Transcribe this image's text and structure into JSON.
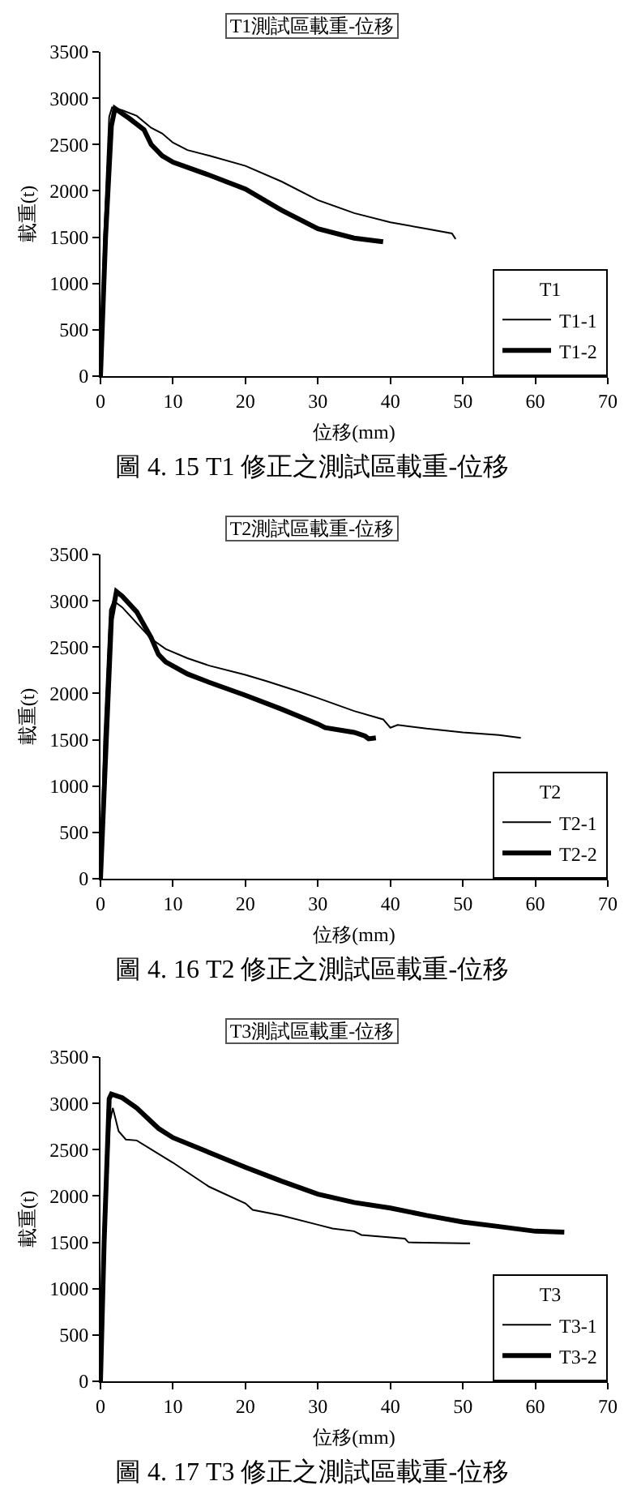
{
  "chart_data": [
    {
      "type": "line",
      "title": "T1測試區載重-位移",
      "xlabel": "位移(mm)",
      "ylabel": "載重(t)",
      "legend_title": "T1",
      "legend": "bottom right",
      "grid": false,
      "xlim": [
        0,
        70
      ],
      "xticks": [
        0,
        10,
        20,
        30,
        40,
        50,
        60,
        70
      ],
      "ylim": [
        0,
        3500
      ],
      "yticks": [
        0,
        500,
        1000,
        1500,
        2000,
        2500,
        3000,
        3500
      ],
      "annotations": [
        "圖 4. 15 T1 修正之測試區載重-位移"
      ],
      "series": [
        {
          "name": "T1-1",
          "color": "#000000",
          "x": [
            0,
            0.5,
            1.2,
            1.6,
            3,
            5,
            7,
            8.5,
            10,
            12,
            15,
            20,
            25,
            30,
            35,
            40,
            45,
            48.5,
            49
          ],
          "values": [
            0,
            1500,
            2800,
            2900,
            2870,
            2810,
            2680,
            2620,
            2520,
            2440,
            2380,
            2270,
            2100,
            1900,
            1760,
            1660,
            1590,
            1540,
            1480
          ]
        },
        {
          "name": "T1-2",
          "color": "#000000",
          "x": [
            0,
            0.7,
            1.5,
            2,
            4,
            6,
            7,
            8.5,
            10,
            15,
            20,
            25,
            30,
            35,
            39
          ],
          "values": [
            0,
            1500,
            2700,
            2890,
            2780,
            2660,
            2500,
            2380,
            2310,
            2170,
            2020,
            1790,
            1590,
            1490,
            1450
          ]
        }
      ]
    },
    {
      "type": "line",
      "title": "T2測試區載重-位移",
      "xlabel": "位移(mm)",
      "ylabel": "載重(t)",
      "legend_title": "T2",
      "legend": "bottom right",
      "grid": false,
      "xlim": [
        0,
        70
      ],
      "xticks": [
        0,
        10,
        20,
        30,
        40,
        50,
        60,
        70
      ],
      "ylim": [
        0,
        3500
      ],
      "yticks": [
        0,
        500,
        1000,
        1500,
        2000,
        2500,
        3000,
        3500
      ],
      "annotations": [
        "圖 4. 16 T2 修正之測試區載重-位移"
      ],
      "series": [
        {
          "name": "T2-1",
          "color": "#000000",
          "x": [
            0,
            0.5,
            1.3,
            1.8,
            3,
            5,
            7,
            9,
            12,
            15,
            20,
            23,
            27,
            30,
            35,
            39,
            40,
            41,
            45,
            50,
            55,
            58
          ],
          "values": [
            0,
            1500,
            2900,
            3000,
            2930,
            2760,
            2590,
            2480,
            2380,
            2300,
            2200,
            2130,
            2030,
            1950,
            1810,
            1720,
            1630,
            1660,
            1620,
            1580,
            1550,
            1520
          ]
        },
        {
          "name": "T2-2",
          "color": "#000000",
          "x": [
            0,
            0.8,
            1.5,
            2.2,
            3,
            5,
            7,
            8,
            9,
            12,
            15,
            20,
            25,
            30,
            31,
            35,
            36.5,
            37,
            38
          ],
          "values": [
            0,
            1500,
            2800,
            3100,
            3050,
            2880,
            2600,
            2420,
            2340,
            2210,
            2120,
            1980,
            1830,
            1670,
            1630,
            1580,
            1540,
            1510,
            1520
          ]
        }
      ]
    },
    {
      "type": "line",
      "title": "T3測試區載重-位移",
      "xlabel": "位移(mm)",
      "ylabel": "載重(t)",
      "legend_title": "T3",
      "legend": "bottom right",
      "grid": false,
      "xlim": [
        0,
        70
      ],
      "xticks": [
        0,
        10,
        20,
        30,
        40,
        50,
        60,
        70
      ],
      "ylim": [
        0,
        3500
      ],
      "yticks": [
        0,
        500,
        1000,
        1500,
        2000,
        2500,
        3000,
        3500
      ],
      "annotations": [
        "圖 4. 17 T3 修正之測試區載重-位移"
      ],
      "series": [
        {
          "name": "T3-1",
          "color": "#000000",
          "x": [
            0,
            0.5,
            1.3,
            1.7,
            2.5,
            3.5,
            5,
            10,
            15,
            20,
            21,
            25,
            30,
            32,
            35,
            36,
            42,
            42.5,
            50,
            51
          ],
          "values": [
            0,
            1500,
            2800,
            2950,
            2700,
            2610,
            2600,
            2360,
            2100,
            1920,
            1850,
            1790,
            1690,
            1650,
            1620,
            1580,
            1540,
            1500,
            1490,
            1490
          ]
        },
        {
          "name": "T3-2",
          "color": "#000000",
          "x": [
            0,
            0.5,
            1.2,
            1.5,
            3,
            5,
            8,
            10,
            15,
            20,
            25,
            30,
            35,
            40,
            45,
            50,
            55,
            60,
            64
          ],
          "values": [
            0,
            1500,
            3050,
            3100,
            3060,
            2950,
            2730,
            2630,
            2470,
            2310,
            2160,
            2020,
            1930,
            1870,
            1790,
            1720,
            1670,
            1620,
            1610
          ]
        }
      ]
    }
  ]
}
